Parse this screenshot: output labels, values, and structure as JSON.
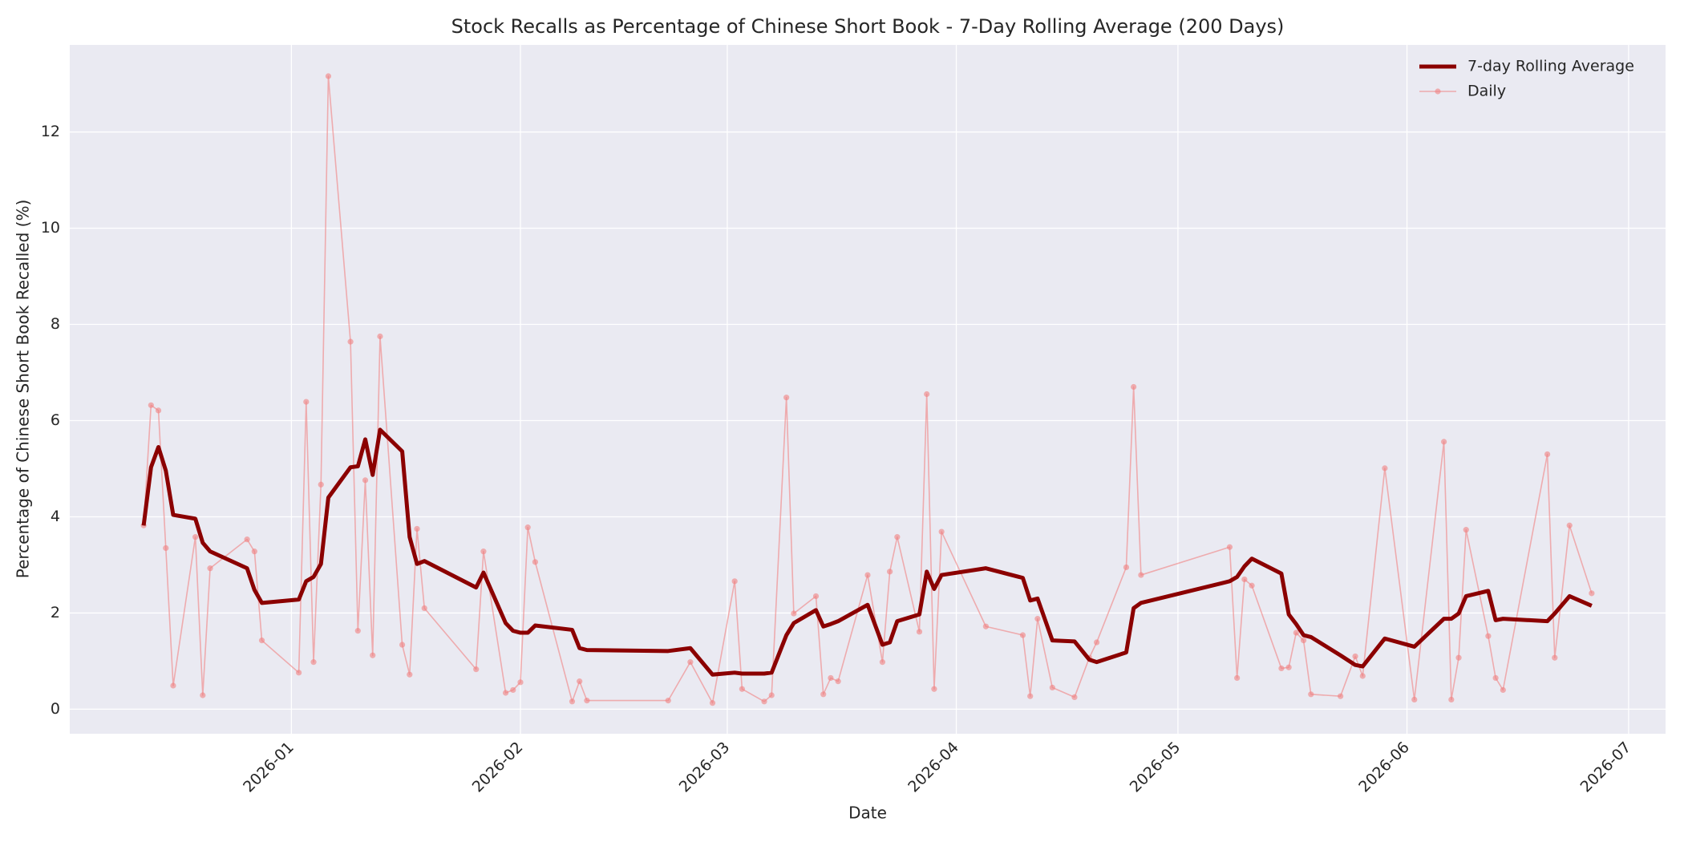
{
  "chart_data": {
    "type": "line",
    "title": "Stock Recalls as Percentage of Chinese Short Book - 7-Day Rolling Average (200 Days)",
    "xlabel": "Date",
    "ylabel": "Percentage of Chinese Short Book Recalled (%)",
    "x": [
      -20,
      -19,
      -18,
      -17,
      -16,
      -13,
      -12,
      -11,
      -6,
      -5,
      -4,
      1,
      2,
      3,
      4,
      5,
      8,
      9,
      10,
      11,
      12,
      15,
      16,
      17,
      18,
      25,
      26,
      29,
      30,
      31,
      32,
      33,
      38,
      39,
      40,
      51,
      54,
      57,
      60,
      61,
      64,
      65,
      67,
      68,
      71,
      72,
      73,
      74,
      78,
      80,
      81,
      82,
      85,
      86,
      87,
      88,
      94,
      99,
      100,
      101,
      103,
      106,
      108,
      109,
      113,
      114,
      115,
      127,
      128,
      129,
      130,
      134,
      135,
      136,
      137,
      138,
      142,
      144,
      145,
      148,
      152,
      156,
      157,
      158,
      159,
      162,
      163,
      164,
      170,
      171,
      173,
      176
    ],
    "series": [
      {
        "name": "7-day Rolling Average",
        "color": "#8b0000",
        "values": [
          3.82,
          5.03,
          5.45,
          4.96,
          4.04,
          3.96,
          3.46,
          3.28,
          2.93,
          2.48,
          2.21,
          2.28,
          2.66,
          2.75,
          3.02,
          4.4,
          5.03,
          5.05,
          5.61,
          4.87,
          5.81,
          5.36,
          3.58,
          3.02,
          3.08,
          2.53,
          2.84,
          1.79,
          1.63,
          1.59,
          1.59,
          1.74,
          1.65,
          1.27,
          1.23,
          1.21,
          1.27,
          0.72,
          0.76,
          0.74,
          0.74,
          0.76,
          1.54,
          1.79,
          2.06,
          1.72,
          1.77,
          1.83,
          2.17,
          1.34,
          1.39,
          1.83,
          1.97,
          2.86,
          2.5,
          2.79,
          2.93,
          2.73,
          2.26,
          2.3,
          1.43,
          1.41,
          1.03,
          0.98,
          1.18,
          2.1,
          2.21,
          2.66,
          2.75,
          2.97,
          3.13,
          2.82,
          1.97,
          1.77,
          1.54,
          1.5,
          1.12,
          0.92,
          0.89,
          1.47,
          1.3,
          1.88,
          1.88,
          1.99,
          2.35,
          2.46,
          1.85,
          1.88,
          1.83,
          1.99,
          2.35,
          2.15
        ]
      },
      {
        "name": "Daily",
        "color": "#f08080",
        "values": [
          3.82,
          6.32,
          6.21,
          3.35,
          0.49,
          3.58,
          0.29,
          2.93,
          3.53,
          3.28,
          1.43,
          0.76,
          6.39,
          0.98,
          4.67,
          13.16,
          7.64,
          1.63,
          4.76,
          1.12,
          7.75,
          1.34,
          0.72,
          3.75,
          2.1,
          0.83,
          3.28,
          0.34,
          0.4,
          0.56,
          3.78,
          3.06,
          0.16,
          0.58,
          0.18,
          0.18,
          0.98,
          0.13,
          2.66,
          0.42,
          0.16,
          0.29,
          6.48,
          1.99,
          2.35,
          0.31,
          0.65,
          0.58,
          2.79,
          0.98,
          2.86,
          3.58,
          1.61,
          6.55,
          0.42,
          3.69,
          1.72,
          1.54,
          0.27,
          1.88,
          0.45,
          0.25,
          1.07,
          1.39,
          2.95,
          6.7,
          2.79,
          3.37,
          0.65,
          2.7,
          2.57,
          0.85,
          0.87,
          1.59,
          1.43,
          0.31,
          0.27,
          1.1,
          0.69,
          5.01,
          0.2,
          5.56,
          0.2,
          1.07,
          3.73,
          1.52,
          0.65,
          0.4,
          5.3,
          1.07,
          3.82,
          2.41
        ]
      }
    ],
    "xlim": [
      -30,
      186
    ],
    "xticks": [
      {
        "value": 0,
        "label": "2026-01"
      },
      {
        "value": 31,
        "label": "2026-02"
      },
      {
        "value": 59,
        "label": "2026-03"
      },
      {
        "value": 90,
        "label": "2026-04"
      },
      {
        "value": 120,
        "label": "2026-05"
      },
      {
        "value": 151,
        "label": "2026-06"
      },
      {
        "value": 181,
        "label": "2026-07"
      }
    ],
    "ylim": [
      -0.51,
      13.81
    ],
    "yticks": [
      0,
      2,
      4,
      6,
      8,
      10,
      12
    ],
    "grid": true,
    "legend": "upper right"
  }
}
